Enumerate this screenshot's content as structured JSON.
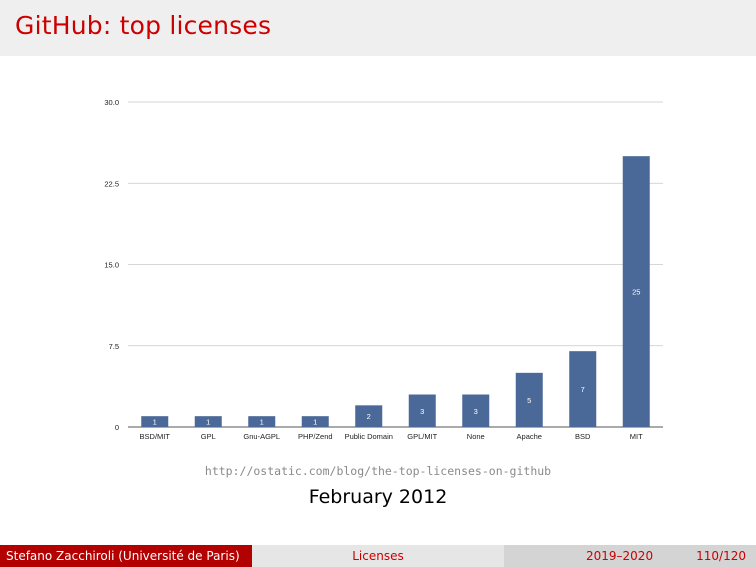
{
  "slide": {
    "title": "GitHub: top licenses",
    "source_url": "http://ostatic.com/blog/the-top-licenses-on-github",
    "date": "February 2012"
  },
  "footer": {
    "author": "Stefano Zacchiroli  (Université de Paris)",
    "section": "Licenses",
    "year": "2019–2020",
    "page": "110/120"
  },
  "colors": {
    "title": "#cc0000",
    "bar": "#4a6998",
    "footer_left_bg": "#b30000"
  },
  "chart_data": {
    "type": "bar",
    "categories": [
      "BSD/MIT",
      "GPL",
      "Gnu-AGPL",
      "PHP/Zend",
      "Public Domain",
      "GPL/MIT",
      "None",
      "Apache",
      "BSD",
      "MIT"
    ],
    "values": [
      1,
      1,
      1,
      1,
      2,
      3,
      3,
      5,
      7,
      25
    ],
    "data_labels": [
      "1",
      "1",
      "1",
      "1",
      "2",
      "3",
      "3",
      "5",
      "7",
      "25"
    ],
    "yticks": [
      "0",
      "7.5",
      "15.0",
      "22.5",
      "30.0"
    ],
    "ytick_values": [
      0,
      7.5,
      15,
      22.5,
      30
    ],
    "ylim": [
      0,
      30
    ],
    "grid": true,
    "title": "",
    "xlabel": "",
    "ylabel": ""
  }
}
